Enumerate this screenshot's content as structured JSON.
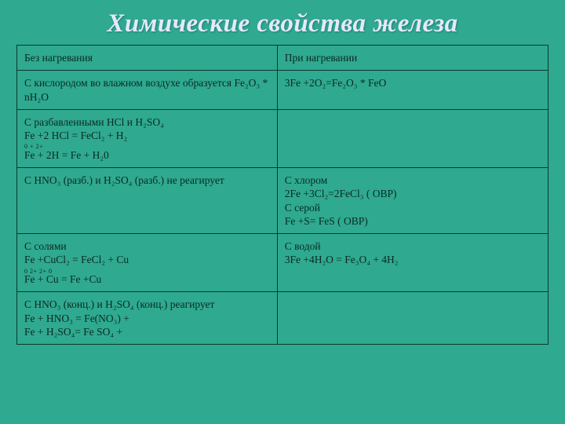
{
  "title": "Химические свойства железа",
  "colors": {
    "background": "#2fa990",
    "title": "#e4e8ff",
    "border": "#0b3a2d",
    "text": "#0a2a22"
  },
  "table": {
    "header": {
      "left": "Без нагревания",
      "right": "При нагревании"
    },
    "rows": [
      {
        "left": "С кислородом во влажном воздухе образуется Fe₂O₃ * nH₂O",
        "right": "3Fe +2O₂=Fe₂O₃ * FeO"
      },
      {
        "left_l1": "С разбавленными HCl и H₂SO₄",
        "left_l2": "Fe +2 HCl = FeCl₂ + H₂",
        "left_sup": "   0            +           2+",
        "left_l3": "Fe + 2H = Fe  +  H₂0",
        "right": ""
      },
      {
        "left": "С HNO₃ (разб.) и H₂SO₄ (разб.) не реагирует",
        "right_l1": "С хлором",
        "right_l2": "2Fe +3Cl₂=2FeCl₃  ( ОВР)",
        "right_l3": "С серой",
        "right_l4": "Fe +S= FeS            ( ОВР)"
      },
      {
        "left_l1": "С солями",
        "left_l2": "Fe +CuCl₂ = FeCl₂ + Cu",
        "left_sup": "  0          2+        2+        0",
        "left_l3": "Fe + Cu = Fe  +Cu",
        "right_l1": "С водой",
        "right_l2": "3Fe +4H₂O = Fe₃O₄ + 4H₂"
      },
      {
        "left_l1": "С HNO₃ (конц.) и H₂SO₄ (конц.) реагирует",
        "left_l2": "Fe + HNO₃ = Fe(NO₃)  +",
        "left_l3": "Fe + H₂SO₄= Fe SO₄  +",
        "right": ""
      }
    ]
  }
}
